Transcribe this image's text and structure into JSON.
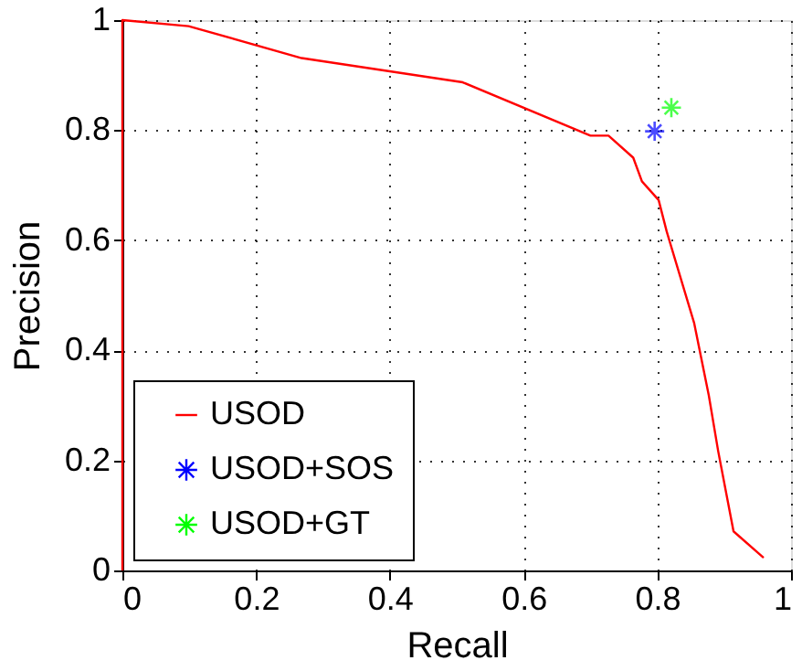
{
  "chart_data": {
    "type": "line",
    "xlabel": "Recall",
    "ylabel": "Precision",
    "xlim": [
      0,
      1
    ],
    "ylim": [
      0,
      1
    ],
    "xticks": [
      0,
      0.2,
      0.4,
      0.6,
      0.8,
      1
    ],
    "yticks": [
      0,
      0.2,
      0.4,
      0.6,
      0.8,
      1
    ],
    "grid": true,
    "legend": "bottom left",
    "series": [
      {
        "name": "USOD",
        "type": "line",
        "color": "#ff0000",
        "marker": "none",
        "line_style": "solid",
        "x": [
          0,
          0,
          0.099,
          0.268,
          0.509,
          0.7,
          0.727,
          0.764,
          0.777,
          0.802,
          0.814,
          0.855,
          0.877,
          0.891,
          0.914,
          0.959
        ],
        "values": [
          0,
          1,
          0.989,
          0.931,
          0.887,
          0.79,
          0.79,
          0.75,
          0.707,
          0.673,
          0.616,
          0.45,
          0.318,
          0.217,
          0.071,
          0.023
        ]
      },
      {
        "name": "USOD+SOS",
        "type": "scatter",
        "color": "#0000ff",
        "marker": "cross",
        "x": [
          0.796
        ],
        "values": [
          0.798
        ]
      },
      {
        "name": "USOD+GT",
        "type": "scatter",
        "color": "#00ff00",
        "marker": "cross",
        "x": [
          0.821
        ],
        "values": [
          0.841
        ]
      }
    ]
  }
}
